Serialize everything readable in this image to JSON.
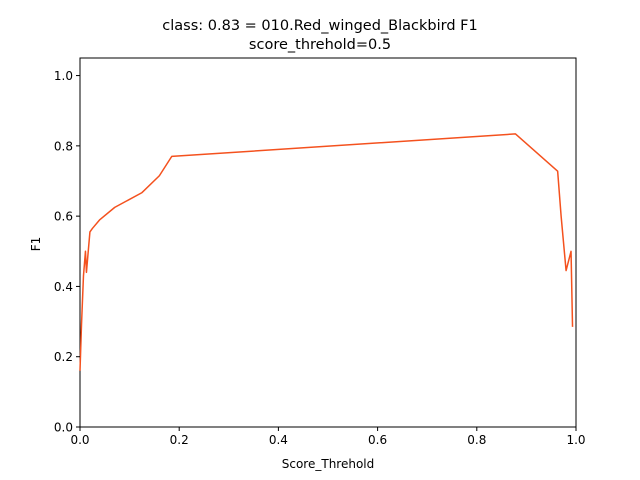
{
  "figure": {
    "title_line1": "class: 0.83 = 010.Red_winged_Blackbird F1",
    "title_line2": "score_threhold=0.5"
  },
  "chart_data": {
    "type": "line",
    "title": "class: 0.83 = 010.Red_winged_Blackbird F1\nscore_threhold=0.5",
    "xlabel": "Score_Threhold",
    "ylabel": "F1",
    "xlim": [
      0.0,
      1.0
    ],
    "ylim": [
      0.0,
      1.05
    ],
    "xticks": [
      0.0,
      0.2,
      0.4,
      0.6,
      0.8,
      1.0
    ],
    "yticks": [
      0.0,
      0.2,
      0.4,
      0.6,
      0.8,
      1.0
    ],
    "xtick_labels": [
      "0.0",
      "0.2",
      "0.4",
      "0.6",
      "0.8",
      "1.0"
    ],
    "ytick_labels": [
      "0.0",
      "0.2",
      "0.4",
      "0.6",
      "0.8",
      "1.0"
    ],
    "grid": false,
    "legend": "none",
    "series": [
      {
        "color": "#f4511e",
        "x": [
          0.0,
          0.003,
          0.007,
          0.011,
          0.013,
          0.016,
          0.02,
          0.025,
          0.04,
          0.07,
          0.125,
          0.16,
          0.185,
          0.878,
          0.963,
          0.97,
          0.98,
          0.99,
          0.993
        ],
        "y": [
          0.16,
          0.29,
          0.43,
          0.5,
          0.44,
          0.49,
          0.555,
          0.565,
          0.59,
          0.625,
          0.667,
          0.715,
          0.77,
          0.834,
          0.728,
          0.6,
          0.445,
          0.5,
          0.285
        ]
      }
    ]
  }
}
